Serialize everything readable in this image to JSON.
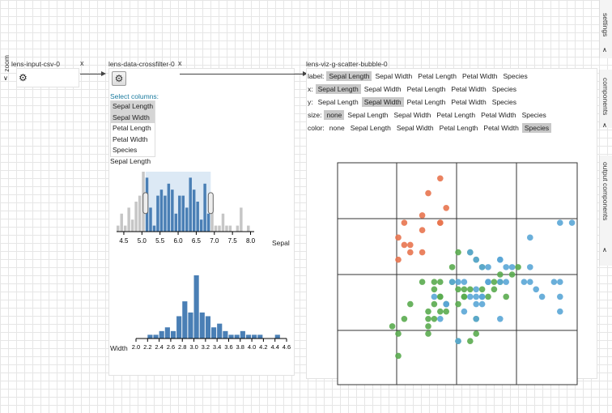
{
  "zoom_label": "zoom",
  "nodes": {
    "input_csv": {
      "title": "lens-input-csv-0",
      "close": "x"
    },
    "crossfilter": {
      "title": "lens-data-crossfilter-0",
      "close": "x"
    },
    "scatter": {
      "title": "lens-viz-g-scatter-bubble-0"
    }
  },
  "side_tabs": {
    "settings": "settings",
    "components": "components",
    "output": "output components"
  },
  "crossfilter": {
    "select_label": "Select columns:",
    "columns": [
      {
        "label": "Sepal Length",
        "selected": true
      },
      {
        "label": "Sepal Width",
        "selected": true
      },
      {
        "label": "Petal Length",
        "selected": false
      },
      {
        "label": "Petal Width",
        "selected": false
      },
      {
        "label": "Species",
        "selected": false
      }
    ],
    "chart1_title": "Sepal Length",
    "chart1_axis_label": "Sepal",
    "chart2_axis_label": "Width"
  },
  "scatter_options": {
    "label": {
      "name": "label:",
      "options": [
        "Sepal Length",
        "Sepal Width",
        "Petal Length",
        "Petal Width",
        "Species"
      ],
      "active": "Sepal Length"
    },
    "x": {
      "name": "x:",
      "options": [
        "Sepal Length",
        "Sepal Width",
        "Petal Length",
        "Petal Width",
        "Species"
      ],
      "active": "Sepal Length"
    },
    "y": {
      "name": "y:",
      "options": [
        "Sepal Length",
        "Sepal Width",
        "Petal Length",
        "Petal Width",
        "Species"
      ],
      "active": "Sepal Width"
    },
    "size": {
      "name": "size:",
      "options": [
        "none",
        "Sepal Length",
        "Sepal Width",
        "Petal Length",
        "Petal Width",
        "Species"
      ],
      "active": "none"
    },
    "color": {
      "name": "color:",
      "options": [
        "none",
        "Sepal Length",
        "Sepal Width",
        "Petal Length",
        "Petal Width",
        "Species"
      ],
      "active": "Species"
    }
  },
  "colors": {
    "bar": "#4a7fb5",
    "bar_out": "#c6c6c6",
    "brush": "#dce9f5",
    "species1": "#e8744f",
    "species2": "#5aab4f",
    "species3": "#5aa6d6"
  },
  "chart_data": [
    {
      "type": "bar",
      "xlabel": "Sepal",
      "xticks": [
        "4.5",
        "5.0",
        "5.5",
        "6.0",
        "6.5",
        "7.0",
        "7.5",
        "8.0"
      ],
      "x": [
        4.3,
        4.4,
        4.5,
        4.6,
        4.7,
        4.8,
        4.9,
        5.0,
        5.1,
        5.2,
        5.3,
        5.4,
        5.5,
        5.6,
        5.7,
        5.8,
        5.9,
        6.0,
        6.1,
        6.2,
        6.3,
        6.4,
        6.5,
        6.6,
        6.7,
        6.8,
        6.9,
        7.0,
        7.1,
        7.2,
        7.3,
        7.4,
        7.6,
        7.7,
        7.9
      ],
      "values": [
        1,
        3,
        1,
        4,
        2,
        5,
        6,
        10,
        9,
        4,
        1,
        6,
        7,
        6,
        8,
        7,
        3,
        6,
        6,
        4,
        9,
        7,
        5,
        2,
        8,
        3,
        4,
        1,
        1,
        3,
        1,
        1,
        1,
        4,
        1
      ],
      "brush": [
        5.1,
        6.9
      ],
      "xlim": [
        4.3,
        8.1
      ]
    },
    {
      "type": "bar",
      "xlabel": "Width",
      "xticks": [
        "2.0",
        "2.2",
        "2.4",
        "2.6",
        "2.8",
        "3.0",
        "3.2",
        "3.4",
        "3.6",
        "3.8",
        "4.0",
        "4.2",
        "4.4",
        "4.6"
      ],
      "x": [
        2.2,
        2.3,
        2.4,
        2.5,
        2.6,
        2.7,
        2.8,
        2.9,
        3.0,
        3.1,
        3.2,
        3.3,
        3.4,
        3.5,
        3.6,
        3.7,
        3.8,
        3.9,
        4.0,
        4.1,
        4.4
      ],
      "values": [
        1,
        1,
        2,
        3,
        2,
        6,
        10,
        7,
        17,
        7,
        6,
        3,
        4,
        2,
        1,
        1,
        2,
        1,
        1,
        1,
        1
      ],
      "xlim": [
        2.0,
        4.6
      ]
    },
    {
      "type": "scatter",
      "series": [
        {
          "points": [
            [
              5.8,
              4.0
            ],
            [
              5.7,
              4.4
            ],
            [
              5.4,
              3.9
            ],
            [
              5.4,
              3.4
            ],
            [
              5.1,
              3.5
            ],
            [
              5.7,
              3.8
            ],
            [
              5.1,
              3.8
            ],
            [
              5.4,
              3.7
            ],
            [
              5.7,
              3.8
            ],
            [
              5.2,
              3.4
            ],
            [
              5.5,
              4.2
            ],
            [
              5.0,
              3.6
            ],
            [
              5.0,
              3.3
            ],
            [
              5.2,
              3.5
            ]
          ]
        },
        {
          "points": [
            [
              7.0,
              3.2
            ],
            [
              6.4,
              3.2
            ],
            [
              6.9,
              3.1
            ],
            [
              5.5,
              2.3
            ],
            [
              6.5,
              2.8
            ],
            [
              5.7,
              2.8
            ],
            [
              6.3,
              3.3
            ],
            [
              4.9,
              2.4
            ],
            [
              6.6,
              2.9
            ],
            [
              5.2,
              2.7
            ],
            [
              5.0,
              2.0
            ],
            [
              5.9,
              3.0
            ],
            [
              6.0,
              2.2
            ],
            [
              6.1,
              2.9
            ],
            [
              5.6,
              2.9
            ],
            [
              6.7,
              3.1
            ],
            [
              5.6,
              3.0
            ],
            [
              5.8,
              2.7
            ],
            [
              6.2,
              2.2
            ],
            [
              5.6,
              2.5
            ],
            [
              5.9,
              3.2
            ],
            [
              6.1,
              2.8
            ],
            [
              6.3,
              2.5
            ],
            [
              6.1,
              2.8
            ],
            [
              6.4,
              2.9
            ],
            [
              6.6,
              3.0
            ],
            [
              6.8,
              2.8
            ],
            [
              6.7,
              3.0
            ],
            [
              6.0,
              2.9
            ],
            [
              5.7,
              2.6
            ],
            [
              5.5,
              2.4
            ],
            [
              5.8,
              2.7
            ],
            [
              6.0,
              2.7
            ],
            [
              5.4,
              3.0
            ],
            [
              6.0,
              3.4
            ],
            [
              6.3,
              2.3
            ],
            [
              5.5,
              2.5
            ],
            [
              5.5,
              2.6
            ],
            [
              5.8,
              2.6
            ],
            [
              5.0,
              2.3
            ],
            [
              5.6,
              2.7
            ],
            [
              5.7,
              3.0
            ],
            [
              6.2,
              2.9
            ],
            [
              5.1,
              2.5
            ],
            [
              5.7,
              2.8
            ],
            [
              6.2,
              3.4
            ]
          ]
        },
        {
          "points": [
            [
              6.3,
              3.3
            ],
            [
              5.8,
              2.7
            ],
            [
              7.1,
              3.0
            ],
            [
              6.3,
              2.9
            ],
            [
              6.5,
              3.0
            ],
            [
              7.6,
              3.0
            ],
            [
              7.3,
              2.9
            ],
            [
              6.7,
              2.5
            ],
            [
              7.2,
              3.6
            ],
            [
              6.5,
              3.2
            ],
            [
              6.4,
              2.7
            ],
            [
              6.8,
              3.0
            ],
            [
              5.7,
              2.5
            ],
            [
              6.4,
              3.2
            ],
            [
              6.5,
              3.0
            ],
            [
              7.7,
              3.8
            ],
            [
              7.7,
              2.6
            ],
            [
              6.0,
              2.2
            ],
            [
              6.9,
              3.2
            ],
            [
              5.6,
              2.8
            ],
            [
              7.7,
              2.8
            ],
            [
              6.3,
              2.7
            ],
            [
              6.7,
              3.3
            ],
            [
              7.2,
              3.2
            ],
            [
              6.2,
              2.8
            ],
            [
              6.1,
              3.0
            ],
            [
              6.4,
              2.8
            ],
            [
              7.2,
              3.0
            ],
            [
              7.4,
              2.8
            ],
            [
              7.9,
              3.8
            ],
            [
              6.4,
              2.8
            ],
            [
              6.3,
              2.8
            ],
            [
              6.1,
              2.6
            ],
            [
              7.7,
              3.0
            ],
            [
              6.0,
              3.0
            ],
            [
              5.8,
              2.7
            ],
            [
              6.8,
              3.2
            ],
            [
              6.7,
              3.3
            ],
            [
              6.7,
              3.0
            ],
            [
              6.3,
              2.5
            ],
            [
              6.5,
              3.0
            ],
            [
              6.2,
              3.4
            ],
            [
              5.9,
              3.0
            ]
          ]
        }
      ]
    }
  ]
}
